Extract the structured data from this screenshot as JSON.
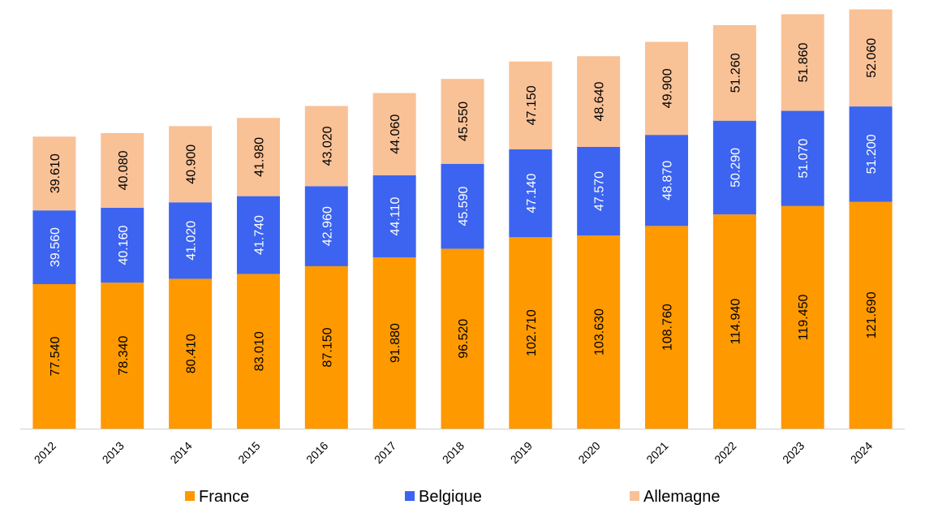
{
  "chart_data": {
    "type": "bar",
    "stacked": true,
    "categories": [
      "2012",
      "2013",
      "2014",
      "2015",
      "2016",
      "2017",
      "2018",
      "2019",
      "2020",
      "2021",
      "2022",
      "2023",
      "2024"
    ],
    "series": [
      {
        "name": "France",
        "color": "#FF9900",
        "values": [
          77540,
          78340,
          80410,
          83010,
          87150,
          91880,
          96520,
          102710,
          103630,
          108760,
          114940,
          119450,
          121690
        ],
        "labels": [
          "77.540",
          "78.340",
          "80.410",
          "83.010",
          "87.150",
          "91.880",
          "96.520",
          "102.710",
          "103.630",
          "108.760",
          "114.940",
          "119.450",
          "121.690"
        ],
        "label_color": "#000000"
      },
      {
        "name": "Belgique",
        "color": "#3C64F0",
        "values": [
          39560,
          40160,
          41020,
          41740,
          42960,
          44110,
          45590,
          47140,
          47570,
          48870,
          50290,
          51070,
          51200
        ],
        "labels": [
          "39.560",
          "40.160",
          "41.020",
          "41.740",
          "42.960",
          "44.110",
          "45.590",
          "47.140",
          "47.570",
          "48.870",
          "50.290",
          "51.070",
          "51.200"
        ],
        "label_color": "#ffffff"
      },
      {
        "name": "Allemagne",
        "color": "#F9C196",
        "values": [
          39610,
          40080,
          40900,
          41980,
          43020,
          44060,
          45550,
          47150,
          48640,
          49900,
          51260,
          51860,
          52060
        ],
        "labels": [
          "39.610",
          "40.080",
          "40.900",
          "41.980",
          "43.020",
          "44.060",
          "45.550",
          "47.150",
          "48.640",
          "49.900",
          "51.260",
          "51.860",
          "52.060"
        ],
        "label_color": "#000000"
      }
    ],
    "title": "",
    "xlabel": "",
    "ylabel": "",
    "ylim": [
      0,
      230000
    ],
    "grid": false,
    "legend_position": "bottom"
  }
}
